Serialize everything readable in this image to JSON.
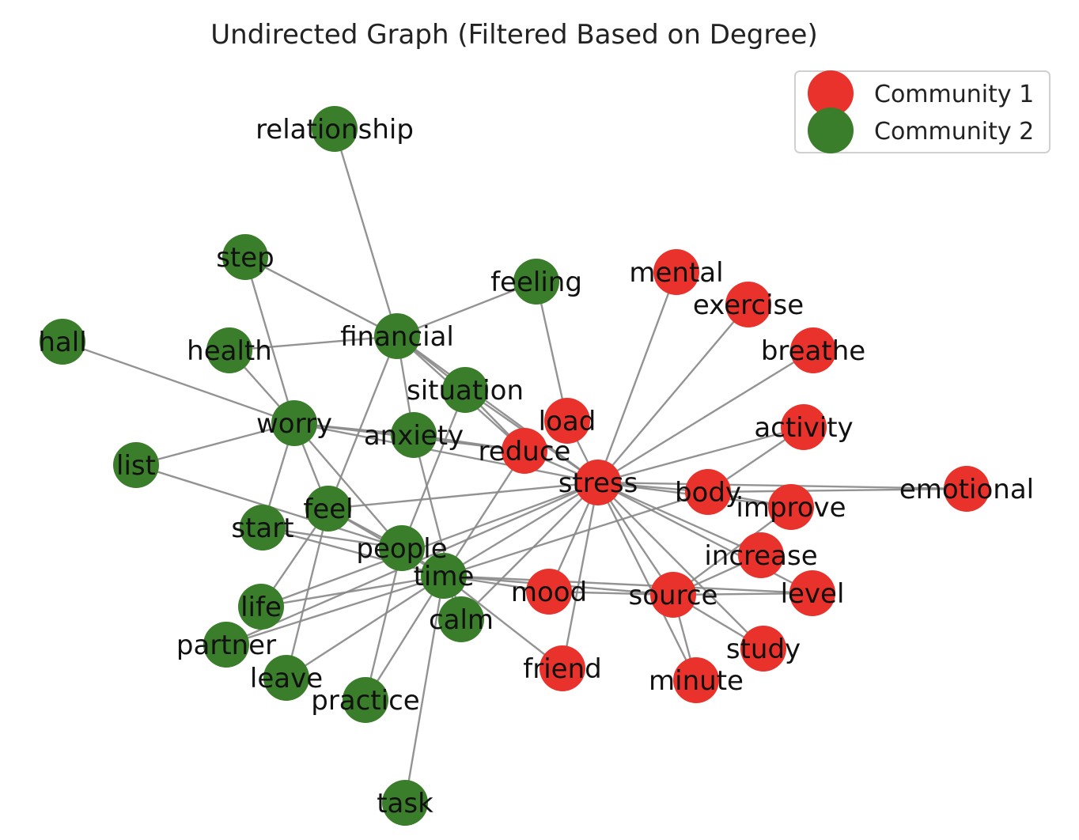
{
  "title": "Undirected Graph (Filtered Based on Degree)",
  "legend": [
    {
      "label": "Community 1",
      "color": "#e8322b"
    },
    {
      "label": "Community 2",
      "color": "#3a7d2a"
    }
  ],
  "nodes": [
    {
      "id": "relationship",
      "label": "relationship",
      "community": 2
    },
    {
      "id": "step",
      "label": "step",
      "community": 2
    },
    {
      "id": "feeling",
      "label": "feeling",
      "community": 2
    },
    {
      "id": "hall",
      "label": "hall",
      "community": 2
    },
    {
      "id": "health",
      "label": "health",
      "community": 2
    },
    {
      "id": "financial",
      "label": "financial",
      "community": 2
    },
    {
      "id": "situation",
      "label": "situation",
      "community": 2
    },
    {
      "id": "worry",
      "label": "worry",
      "community": 2
    },
    {
      "id": "anxiety",
      "label": "anxiety",
      "community": 2
    },
    {
      "id": "list",
      "label": "list",
      "community": 2
    },
    {
      "id": "feel",
      "label": "feel",
      "community": 2
    },
    {
      "id": "start",
      "label": "start",
      "community": 2
    },
    {
      "id": "people",
      "label": "people",
      "community": 2
    },
    {
      "id": "time",
      "label": "time",
      "community": 2
    },
    {
      "id": "life",
      "label": "life",
      "community": 2
    },
    {
      "id": "calm",
      "label": "calm",
      "community": 2
    },
    {
      "id": "partner",
      "label": "partner",
      "community": 2
    },
    {
      "id": "leave",
      "label": "leave",
      "community": 2
    },
    {
      "id": "practice",
      "label": "practice",
      "community": 2
    },
    {
      "id": "task",
      "label": "task",
      "community": 2
    },
    {
      "id": "mental",
      "label": "mental",
      "community": 1
    },
    {
      "id": "exercise",
      "label": "exercise",
      "community": 1
    },
    {
      "id": "breathe",
      "label": "breathe",
      "community": 1
    },
    {
      "id": "load",
      "label": "load",
      "community": 1
    },
    {
      "id": "activity",
      "label": "activity",
      "community": 1
    },
    {
      "id": "reduce",
      "label": "reduce",
      "community": 1
    },
    {
      "id": "stress",
      "label": "stress",
      "community": 1
    },
    {
      "id": "body",
      "label": "body",
      "community": 1
    },
    {
      "id": "emotional",
      "label": "emotional",
      "community": 1
    },
    {
      "id": "improve",
      "label": "improve",
      "community": 1
    },
    {
      "id": "increase",
      "label": "increase",
      "community": 1
    },
    {
      "id": "mood",
      "label": "mood",
      "community": 1
    },
    {
      "id": "source",
      "label": "source",
      "community": 1
    },
    {
      "id": "level",
      "label": "level",
      "community": 1
    },
    {
      "id": "study",
      "label": "study",
      "community": 1
    },
    {
      "id": "friend",
      "label": "friend",
      "community": 1
    },
    {
      "id": "minute",
      "label": "minute",
      "community": 1
    }
  ],
  "edges": [
    [
      "relationship",
      "financial"
    ],
    [
      "step",
      "financial"
    ],
    [
      "step",
      "worry"
    ],
    [
      "feeling",
      "financial"
    ],
    [
      "feeling",
      "load"
    ],
    [
      "health",
      "financial"
    ],
    [
      "health",
      "worry"
    ],
    [
      "hall",
      "worry"
    ],
    [
      "financial",
      "situation"
    ],
    [
      "financial",
      "stress"
    ],
    [
      "financial",
      "reduce"
    ],
    [
      "financial",
      "anxiety"
    ],
    [
      "financial",
      "feel"
    ],
    [
      "situation",
      "stress"
    ],
    [
      "situation",
      "reduce"
    ],
    [
      "situation",
      "people"
    ],
    [
      "worry",
      "anxiety"
    ],
    [
      "worry",
      "stress"
    ],
    [
      "worry",
      "reduce"
    ],
    [
      "worry",
      "start"
    ],
    [
      "worry",
      "list"
    ],
    [
      "worry",
      "people"
    ],
    [
      "worry",
      "feel"
    ],
    [
      "anxiety",
      "reduce"
    ],
    [
      "anxiety",
      "calm"
    ],
    [
      "list",
      "people"
    ],
    [
      "feel",
      "stress"
    ],
    [
      "feel",
      "time"
    ],
    [
      "feel",
      "people"
    ],
    [
      "feel",
      "life"
    ],
    [
      "feel",
      "leave"
    ],
    [
      "start",
      "time"
    ],
    [
      "start",
      "people"
    ],
    [
      "people",
      "time"
    ],
    [
      "people",
      "practice"
    ],
    [
      "time",
      "stress"
    ],
    [
      "time",
      "reduce"
    ],
    [
      "time",
      "life"
    ],
    [
      "time",
      "partner"
    ],
    [
      "time",
      "leave"
    ],
    [
      "time",
      "practice"
    ],
    [
      "time",
      "task"
    ],
    [
      "time",
      "calm"
    ],
    [
      "time",
      "mood"
    ],
    [
      "time",
      "source"
    ],
    [
      "time",
      "friend"
    ],
    [
      "time",
      "body"
    ],
    [
      "time",
      "level"
    ],
    [
      "life",
      "stress"
    ],
    [
      "partner",
      "stress"
    ],
    [
      "stress",
      "mental"
    ],
    [
      "stress",
      "exercise"
    ],
    [
      "stress",
      "breathe"
    ],
    [
      "stress",
      "load"
    ],
    [
      "stress",
      "activity"
    ],
    [
      "stress",
      "reduce"
    ],
    [
      "stress",
      "body"
    ],
    [
      "stress",
      "improve"
    ],
    [
      "stress",
      "increase"
    ],
    [
      "stress",
      "mood"
    ],
    [
      "stress",
      "source"
    ],
    [
      "stress",
      "level"
    ],
    [
      "stress",
      "study"
    ],
    [
      "stress",
      "friend"
    ],
    [
      "stress",
      "minute"
    ],
    [
      "stress",
      "calm"
    ],
    [
      "stress",
      "emotional"
    ],
    [
      "body",
      "emotional"
    ],
    [
      "body",
      "activity"
    ],
    [
      "body",
      "improve"
    ],
    [
      "improve",
      "source"
    ],
    [
      "increase",
      "source"
    ],
    [
      "source",
      "level"
    ],
    [
      "source",
      "study"
    ],
    [
      "source",
      "minute"
    ],
    [
      "source",
      "mood"
    ]
  ]
}
